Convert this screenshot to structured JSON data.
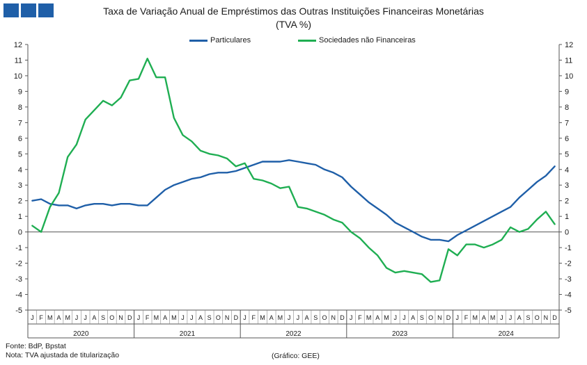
{
  "header": {
    "logo_colors": [
      "#1f5fa8",
      "#1f5fa8",
      "#1f5fa8"
    ]
  },
  "chart_data": {
    "type": "line",
    "title": "Taxa de Variação Anual de Empréstimos das Outras Instituições Financeiras Monetárias",
    "subtitle": "(TVA %)",
    "ylim": [
      -5,
      12
    ],
    "yticks": [
      -5,
      -4,
      -3,
      -2,
      -1,
      0,
      1,
      2,
      3,
      4,
      5,
      6,
      7,
      8,
      9,
      10,
      11,
      12
    ],
    "y_axes": "left-and-right",
    "grid": false,
    "legend_position": "top-center",
    "month_labels": [
      "J",
      "F",
      "M",
      "A",
      "M",
      "J",
      "J",
      "A",
      "S",
      "O",
      "N",
      "D"
    ],
    "years": [
      "2020",
      "2021",
      "2022",
      "2023",
      "2024"
    ],
    "series": [
      {
        "name": "Particulares",
        "color": "#1f5fa8",
        "values": [
          2.0,
          2.1,
          1.8,
          1.7,
          1.7,
          1.5,
          1.7,
          1.8,
          1.8,
          1.7,
          1.8,
          1.8,
          1.7,
          1.7,
          2.2,
          2.7,
          3.0,
          3.2,
          3.4,
          3.5,
          3.7,
          3.8,
          3.8,
          3.9,
          4.1,
          4.3,
          4.5,
          4.5,
          4.5,
          4.6,
          4.5,
          4.4,
          4.3,
          4.0,
          3.8,
          3.5,
          2.9,
          2.4,
          1.9,
          1.5,
          1.1,
          0.6,
          0.3,
          0.0,
          -0.3,
          -0.5,
          -0.5,
          -0.6,
          -0.2,
          0.1,
          0.4,
          0.7,
          1.0,
          1.3,
          1.6,
          2.2,
          2.7,
          3.2,
          3.6,
          4.2
        ]
      },
      {
        "name": "Sociedades não Financeiras",
        "color": "#1fae52",
        "values": [
          0.4,
          0.0,
          1.6,
          2.5,
          4.8,
          5.6,
          7.2,
          7.8,
          8.4,
          8.1,
          8.6,
          9.7,
          9.8,
          11.1,
          9.9,
          9.9,
          7.3,
          6.2,
          5.8,
          5.2,
          5.0,
          4.9,
          4.7,
          4.2,
          4.4,
          3.4,
          3.3,
          3.1,
          2.8,
          2.9,
          1.6,
          1.5,
          1.3,
          1.1,
          0.8,
          0.6,
          0.0,
          -0.4,
          -1.0,
          -1.5,
          -2.3,
          -2.6,
          -2.5,
          -2.6,
          -2.7,
          -3.2,
          -3.1,
          -1.1,
          -1.5,
          -0.8,
          -0.8,
          -1.0,
          -0.8,
          -0.5,
          0.3,
          0.0,
          0.2,
          0.8,
          1.3,
          0.5
        ]
      }
    ]
  },
  "footer": {
    "source": "Fonte: BdP, Bpstat",
    "note": "Nota: TVA ajustada de titularização",
    "credit": "(Gráfico: GEE)"
  }
}
